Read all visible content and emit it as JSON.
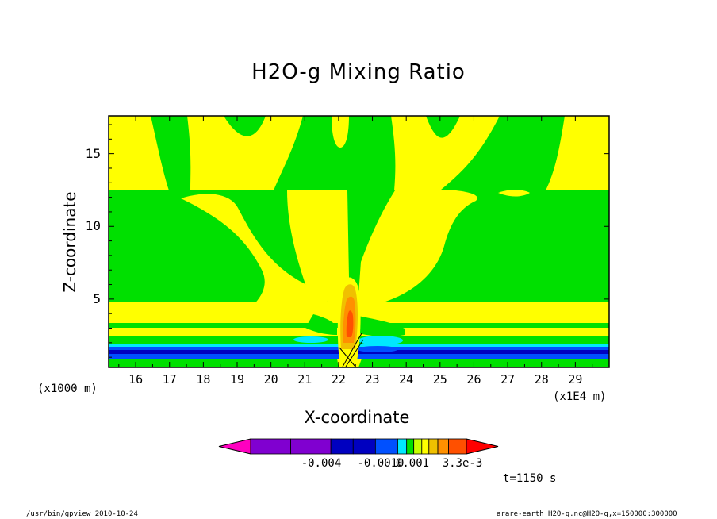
{
  "chart_data": {
    "type": "heatmap",
    "title": "H2O-g Mixing Ratio",
    "xlabel": "X-coordinate",
    "ylabel": "Z-coordinate",
    "x_unit_left": "(x1000 m)",
    "x_unit_right": "(x1E4 m)",
    "xlim": [
      15.2,
      30.0
    ],
    "ylim": [
      0.3,
      17.6
    ],
    "xticks": [
      "16",
      "17",
      "18",
      "19",
      "20",
      "21",
      "22",
      "23",
      "24",
      "25",
      "26",
      "27",
      "28",
      "29"
    ],
    "yticks": [
      "5",
      "10",
      "15"
    ],
    "colorbar": {
      "labels": [
        "-0.004",
        "-0.0010",
        "0.001",
        "3.3e-3"
      ],
      "colors": [
        "#ff00c0",
        "#8000d0",
        "#8000d0",
        "#0000c0",
        "#0000c0",
        "#0050ff",
        "#00e8ff",
        "#00e000",
        "#c8ff00",
        "#ffff00",
        "#f0c000",
        "#ff9000",
        "#ff5000",
        "#ff0000"
      ]
    },
    "field_colors": {
      "background": "#00e000",
      "yellow": "#ffff00",
      "light_orange": "#f0c000",
      "orange": "#ff9000",
      "cyan": "#00e8ff",
      "blue": "#0050ff",
      "dark_blue": "#0000c0"
    },
    "annotation_time": "t=1150 s"
  },
  "footer": {
    "left": "/usr/bin/gpview  2010-10-24",
    "right": "arare-earth_H2O-g.nc@H2O-g,x=150000:300000"
  }
}
